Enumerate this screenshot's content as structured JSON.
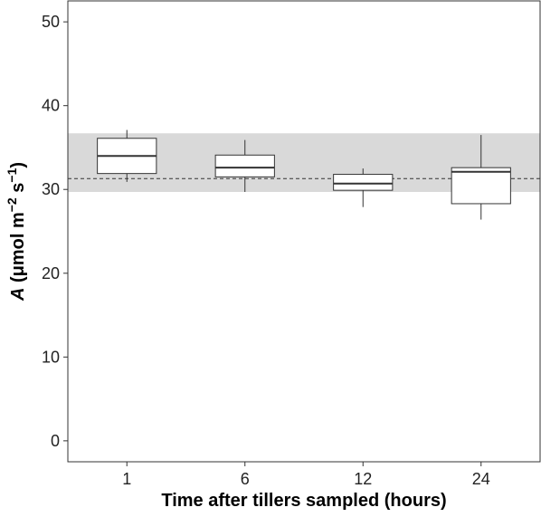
{
  "chart_data": {
    "type": "box",
    "categories": [
      "1",
      "6",
      "12",
      "24"
    ],
    "boxes": [
      {
        "category": "1",
        "whisker_low": 30.9,
        "q1": 31.9,
        "median": 34.0,
        "q3": 36.1,
        "whisker_high": 37.1
      },
      {
        "category": "6",
        "whisker_low": 29.7,
        "q1": 31.5,
        "median": 32.6,
        "q3": 34.1,
        "whisker_high": 35.9
      },
      {
        "category": "12",
        "whisker_low": 27.9,
        "q1": 29.9,
        "median": 30.7,
        "q3": 31.8,
        "whisker_high": 32.5
      },
      {
        "category": "24",
        "whisker_low": 26.4,
        "q1": 28.3,
        "median": 32.1,
        "q3": 32.6,
        "whisker_high": 36.5
      }
    ],
    "reference_band": {
      "low": 29.7,
      "high": 36.7,
      "color": "#d9d9d9"
    },
    "reference_line": {
      "value": 31.3,
      "style": "dashed"
    },
    "xlabel": "Time after tillers sampled (hours)",
    "ylabel_italic": "A",
    "ylabel_rest": " (μmol m",
    "ylabel_exp1": "−2",
    "ylabel_mid": " s",
    "ylabel_exp2": "−1",
    "ylabel_end": ")",
    "yticks": [
      0,
      10,
      20,
      30,
      40,
      50
    ],
    "ylim": [
      -2.5,
      52.5
    ],
    "grid": false,
    "box_fill": "#ffffff",
    "box_stroke": "#333333"
  }
}
